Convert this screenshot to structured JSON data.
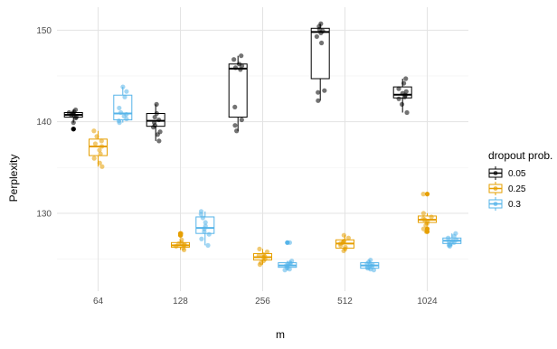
{
  "chart_data": {
    "type": "boxplot",
    "xlabel": "m",
    "ylabel": "Perplexity",
    "categories": [
      "64",
      "128",
      "256",
      "512",
      "1024"
    ],
    "ylim": [
      121.5,
      152.5
    ],
    "yticks": [
      130,
      140,
      150
    ],
    "grid": true,
    "legend": {
      "title": "dropout prob.",
      "placement": "right",
      "entries": [
        "0.05",
        "0.25",
        "0.3"
      ]
    },
    "series": [
      {
        "name": "0.05",
        "color": "#000000",
        "boxes": [
          {
            "q1": 140.5,
            "median": 140.75,
            "q3": 141.0,
            "whisker_low": 139.9,
            "whisker_high": 141.3,
            "outliers": [
              139.2
            ],
            "points": [
              141.3,
              141.1,
              140.9,
              140.7,
              140.5,
              140.4,
              139.9,
              139.2,
              140.8,
              141.0
            ]
          },
          {
            "q1": 139.5,
            "median": 140.1,
            "q3": 140.9,
            "whisker_low": 137.9,
            "whisker_high": 141.9,
            "outliers": [],
            "points": [
              141.9,
              140.9,
              140.5,
              140.2,
              139.9,
              139.6,
              139.4,
              138.9,
              138.6,
              137.9
            ]
          },
          {
            "q1": 140.5,
            "median": 145.8,
            "q3": 146.3,
            "whisker_low": 139.0,
            "whisker_high": 147.2,
            "outliers": [],
            "points": [
              147.2,
              146.8,
              146.3,
              146.1,
              145.9,
              145.7,
              141.6,
              140.2,
              139.6,
              139.0
            ]
          },
          {
            "q1": 144.7,
            "median": 149.8,
            "q3": 150.2,
            "whisker_low": 142.3,
            "whisker_high": 150.7,
            "outliers": [],
            "points": [
              150.7,
              150.4,
              150.1,
              149.7,
              149.3,
              148.6,
              143.4,
              143.2,
              142.3,
              149.9
            ]
          },
          {
            "q1": 142.6,
            "median": 142.95,
            "q3": 143.8,
            "whisker_low": 141.0,
            "whisker_high": 144.7,
            "outliers": [],
            "points": [
              144.7,
              144.2,
              143.6,
              143.1,
              142.9,
              142.7,
              142.5,
              141.9,
              141.0,
              143.3
            ]
          }
        ]
      },
      {
        "name": "0.25",
        "color": "#E69F00",
        "boxes": [
          {
            "q1": 136.3,
            "median": 137.3,
            "q3": 138.1,
            "whisker_low": 135.1,
            "whisker_high": 139.0,
            "outliers": [],
            "points": [
              139.0,
              138.4,
              137.9,
              137.6,
              137.3,
              136.9,
              136.5,
              136.0,
              135.5,
              135.1
            ]
          },
          {
            "q1": 126.3,
            "median": 126.5,
            "q3": 126.8,
            "whisker_low": 126.0,
            "whisker_high": 127.1,
            "outliers": [
              127.8,
              127.6
            ],
            "points": [
              127.8,
              127.6,
              127.1,
              126.8,
              126.6,
              126.5,
              126.4,
              126.2,
              126.0,
              126.7
            ]
          },
          {
            "q1": 124.9,
            "median": 125.2,
            "q3": 125.6,
            "whisker_low": 124.4,
            "whisker_high": 126.1,
            "outliers": [],
            "points": [
              126.1,
              125.8,
              125.5,
              125.3,
              125.2,
              125.0,
              124.8,
              124.6,
              124.4,
              125.4
            ]
          },
          {
            "q1": 126.2,
            "median": 126.7,
            "q3": 127.1,
            "whisker_low": 125.9,
            "whisker_high": 127.6,
            "outliers": [],
            "points": [
              127.6,
              127.3,
              127.0,
              126.8,
              126.7,
              126.5,
              126.3,
              126.1,
              125.9,
              126.9
            ]
          },
          {
            "q1": 129.0,
            "median": 129.3,
            "q3": 129.7,
            "whisker_low": 128.7,
            "whisker_high": 130.0,
            "outliers": [
              132.1,
              128.3,
              128.0
            ],
            "points": [
              132.1,
              130.0,
              129.6,
              129.4,
              129.3,
              129.1,
              128.9,
              128.7,
              128.3,
              128.0
            ]
          }
        ]
      },
      {
        "name": "0.3",
        "color": "#56B4E9",
        "boxes": [
          {
            "q1": 140.2,
            "median": 140.9,
            "q3": 142.9,
            "whisker_low": 139.9,
            "whisker_high": 143.8,
            "outliers": [],
            "points": [
              143.8,
              143.3,
              142.7,
              141.5,
              141.0,
              140.8,
              140.6,
              140.3,
              140.1,
              139.9
            ]
          },
          {
            "q1": 127.8,
            "median": 128.4,
            "q3": 129.6,
            "whisker_low": 126.5,
            "whisker_high": 130.2,
            "outliers": [],
            "points": [
              130.2,
              129.9,
              129.5,
              129.0,
              128.6,
              128.3,
              128.0,
              127.7,
              127.2,
              126.5
            ]
          },
          {
            "q1": 124.1,
            "median": 124.3,
            "q3": 124.6,
            "whisker_low": 123.8,
            "whisker_high": 124.8,
            "outliers": [
              126.8
            ],
            "points": [
              126.8,
              124.8,
              124.6,
              124.5,
              124.4,
              124.3,
              124.2,
              124.0,
              123.9,
              123.8
            ]
          },
          {
            "q1": 124.0,
            "median": 124.3,
            "q3": 124.6,
            "whisker_low": 123.8,
            "whisker_high": 124.9,
            "outliers": [],
            "points": [
              124.9,
              124.7,
              124.5,
              124.4,
              124.3,
              124.2,
              124.1,
              124.0,
              123.9,
              123.8
            ]
          },
          {
            "q1": 126.7,
            "median": 127.0,
            "q3": 127.3,
            "whisker_low": 126.4,
            "whisker_high": 127.8,
            "outliers": [],
            "points": [
              127.8,
              127.5,
              127.3,
              127.1,
              127.0,
              126.9,
              126.8,
              126.6,
              126.5,
              126.4
            ]
          }
        ]
      }
    ]
  }
}
